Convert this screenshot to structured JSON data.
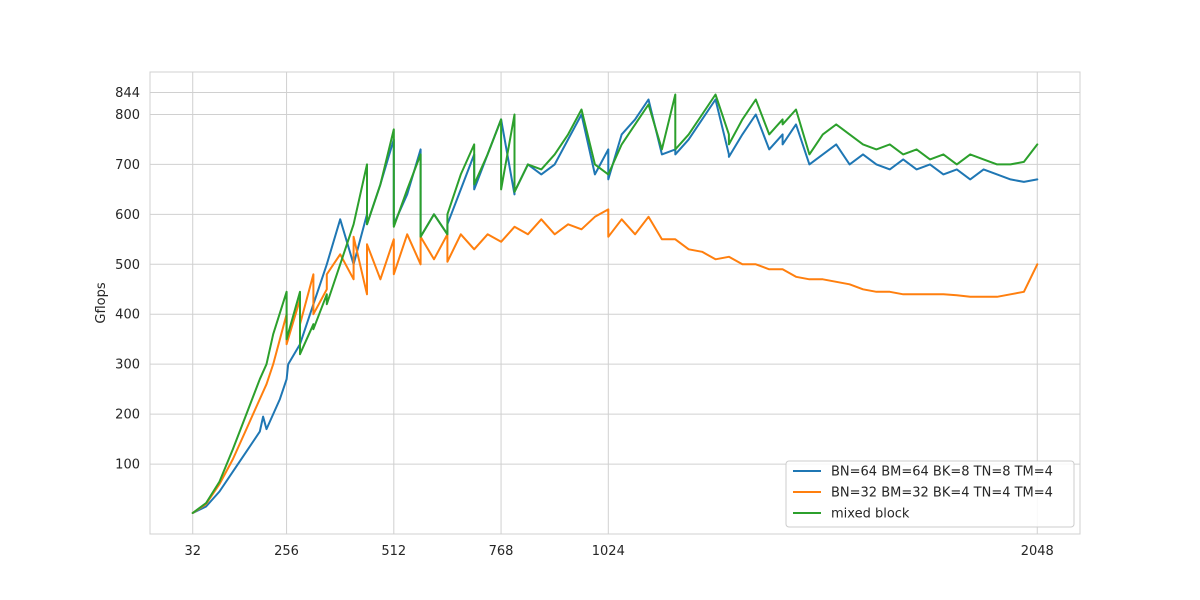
{
  "chart_data": {
    "type": "line",
    "title": "",
    "xlabel": "",
    "ylabel": "Gflops",
    "xlim": [
      -70,
      2150
    ],
    "ylim": [
      -40,
      885
    ],
    "x_ticks": [
      32,
      256,
      512,
      768,
      1024,
      2048
    ],
    "y_ticks": [
      100,
      200,
      300,
      400,
      500,
      600,
      700,
      800,
      844
    ],
    "grid": true,
    "legend_position": "bottom-right",
    "series": [
      {
        "name": "BN=64 BM=64 BK=8 TN=8 TM=4",
        "color": "#1f77b4",
        "x": [
          32,
          64,
          96,
          128,
          160,
          192,
          200,
          208,
          240,
          256,
          260,
          288,
          304,
          320,
          336,
          352,
          384,
          416,
          448,
          448,
          480,
          512,
          512,
          544,
          576,
          576,
          608,
          640,
          640,
          672,
          704,
          704,
          736,
          768,
          800,
          800,
          832,
          864,
          896,
          928,
          960,
          992,
          1024,
          1024,
          1056,
          1088,
          1120,
          1152,
          1184,
          1184,
          1216,
          1248,
          1280,
          1312,
          1312,
          1344,
          1376,
          1408,
          1440,
          1440,
          1472,
          1504,
          1536,
          1568,
          1600,
          1632,
          1664,
          1696,
          1728,
          1760,
          1792,
          1824,
          1856,
          1888,
          1920,
          1952,
          1984,
          2016,
          2048
        ],
        "y": [
          2,
          15,
          45,
          85,
          125,
          165,
          195,
          170,
          230,
          270,
          300,
          340,
          380,
          420,
          460,
          500,
          590,
          500,
          600,
          580,
          660,
          750,
          580,
          640,
          730,
          555,
          600,
          560,
          580,
          650,
          720,
          650,
          720,
          790,
          640,
          645,
          700,
          680,
          700,
          750,
          800,
          680,
          730,
          670,
          760,
          790,
          830,
          720,
          730,
          720,
          750,
          790,
          830,
          720,
          715,
          760,
          800,
          730,
          760,
          740,
          780,
          700,
          720,
          740,
          700,
          720,
          700,
          690,
          710,
          690,
          700,
          680,
          690,
          670,
          690,
          680,
          670,
          665,
          670
        ]
      },
      {
        "name": "BN=32 BM=32 BK=4 TN=4 TM=4",
        "color": "#ff7f0e",
        "x": [
          32,
          64,
          96,
          128,
          160,
          192,
          208,
          224,
          256,
          256,
          288,
          288,
          320,
          320,
          352,
          352,
          384,
          416,
          416,
          448,
          448,
          480,
          512,
          512,
          544,
          576,
          576,
          608,
          640,
          640,
          672,
          704,
          736,
          768,
          800,
          832,
          864,
          896,
          928,
          960,
          992,
          1024,
          1024,
          1056,
          1088,
          1120,
          1152,
          1184,
          1216,
          1248,
          1280,
          1312,
          1344,
          1376,
          1408,
          1440,
          1472,
          1504,
          1536,
          1568,
          1600,
          1632,
          1664,
          1696,
          1728,
          1760,
          1792,
          1824,
          1856,
          1888,
          1920,
          1952,
          1984,
          2016,
          2048
        ],
        "y": [
          2,
          20,
          60,
          110,
          170,
          230,
          260,
          300,
          400,
          340,
          430,
          380,
          480,
          400,
          450,
          480,
          520,
          470,
          555,
          440,
          540,
          470,
          550,
          480,
          560,
          500,
          555,
          510,
          560,
          505,
          560,
          530,
          560,
          545,
          575,
          560,
          590,
          560,
          580,
          570,
          595,
          610,
          555,
          590,
          560,
          595,
          550,
          550,
          530,
          525,
          510,
          515,
          500,
          500,
          490,
          490,
          475,
          470,
          470,
          465,
          460,
          450,
          445,
          445,
          440,
          440,
          440,
          440,
          438,
          435,
          435,
          435,
          440,
          445,
          500
        ]
      },
      {
        "name": "mixed block",
        "color": "#2ca02c",
        "x": [
          32,
          64,
          96,
          128,
          160,
          192,
          208,
          224,
          256,
          256,
          288,
          288,
          320,
          320,
          352,
          352,
          384,
          416,
          448,
          448,
          480,
          512,
          512,
          544,
          576,
          576,
          608,
          640,
          640,
          672,
          704,
          704,
          736,
          768,
          768,
          800,
          800,
          832,
          864,
          896,
          928,
          960,
          992,
          1024,
          1024,
          1056,
          1088,
          1120,
          1152,
          1184,
          1184,
          1216,
          1248,
          1280,
          1312,
          1312,
          1344,
          1376,
          1408,
          1440,
          1440,
          1472,
          1504,
          1536,
          1568,
          1600,
          1632,
          1664,
          1696,
          1728,
          1760,
          1792,
          1824,
          1856,
          1888,
          1920,
          1952,
          1984,
          2016,
          2048
        ],
        "y": [
          2,
          22,
          65,
          130,
          200,
          270,
          300,
          360,
          445,
          350,
          445,
          320,
          380,
          370,
          440,
          420,
          500,
          580,
          700,
          580,
          660,
          770,
          575,
          650,
          720,
          555,
          600,
          560,
          600,
          680,
          740,
          660,
          720,
          790,
          650,
          800,
          645,
          700,
          690,
          720,
          760,
          810,
          700,
          680,
          680,
          740,
          780,
          820,
          730,
          840,
          730,
          760,
          800,
          840,
          760,
          740,
          790,
          830,
          760,
          790,
          780,
          810,
          720,
          760,
          780,
          760,
          740,
          730,
          740,
          720,
          730,
          710,
          720,
          700,
          720,
          710,
          700,
          700,
          705,
          740
        ]
      }
    ]
  }
}
